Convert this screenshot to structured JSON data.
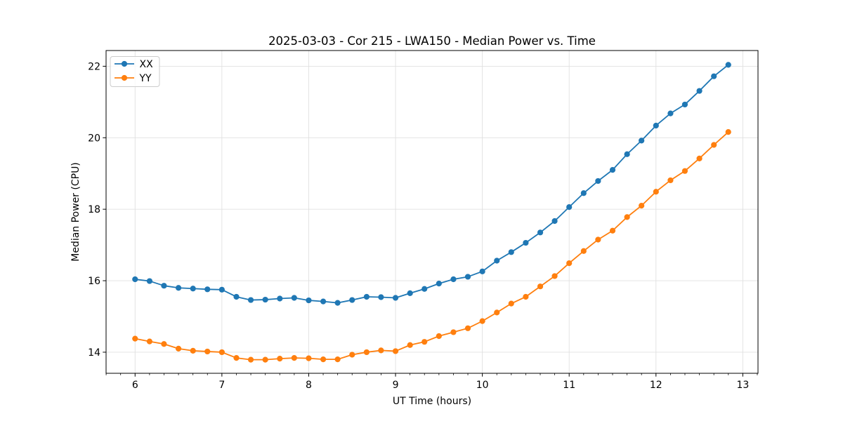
{
  "figure": {
    "title": "2025-03-03 - Cor 215 - LWA150 - Median Power vs. Time"
  },
  "chart_data": {
    "type": "line",
    "title": "2025-03-03 - Cor 215 - LWA150 - Median Power vs. Time",
    "xlabel": "UT Time (hours)",
    "ylabel": "Median Power (CPU)",
    "xlim": [
      5.666,
      13.175
    ],
    "ylim": [
      13.41,
      22.44
    ],
    "x_ticks": [
      6,
      7,
      8,
      9,
      10,
      11,
      12,
      13
    ],
    "y_ticks": [
      14,
      16,
      18,
      20,
      22
    ],
    "x_minor_tick_step_hours": 0.1667,
    "grid": true,
    "grid_color": "#e0e0e0",
    "background_color": "#ffffff",
    "legend": {
      "position": "upper-left",
      "entries": [
        "XX",
        "YY"
      ]
    },
    "x": [
      6.0,
      6.167,
      6.333,
      6.5,
      6.667,
      6.833,
      7.0,
      7.167,
      7.333,
      7.5,
      7.667,
      7.833,
      8.0,
      8.167,
      8.333,
      8.5,
      8.667,
      8.833,
      9.0,
      9.167,
      9.333,
      9.5,
      9.667,
      9.833,
      10.0,
      10.167,
      10.333,
      10.5,
      10.667,
      10.833,
      11.0,
      11.167,
      11.333,
      11.5,
      11.667,
      11.833,
      12.0,
      12.167,
      12.333,
      12.5,
      12.667,
      12.833
    ],
    "series": [
      {
        "name": "XX",
        "color": "#1f77b4",
        "marker": "circle",
        "values": [
          16.04,
          15.99,
          15.86,
          15.8,
          15.78,
          15.76,
          15.75,
          15.55,
          15.46,
          15.47,
          15.5,
          15.52,
          15.45,
          15.42,
          15.38,
          15.46,
          15.55,
          15.54,
          15.52,
          15.65,
          15.77,
          15.92,
          16.04,
          16.11,
          16.26,
          16.56,
          16.8,
          17.06,
          17.35,
          17.67,
          18.06,
          18.45,
          18.79,
          19.1,
          19.54,
          19.92,
          20.34,
          20.68,
          20.93,
          21.31,
          21.72,
          22.04
        ]
      },
      {
        "name": "YY",
        "color": "#ff7f0e",
        "marker": "circle",
        "values": [
          14.38,
          14.3,
          14.23,
          14.1,
          14.04,
          14.02,
          14.0,
          13.84,
          13.79,
          13.79,
          13.82,
          13.84,
          13.83,
          13.8,
          13.8,
          13.93,
          14.0,
          14.05,
          14.03,
          14.2,
          14.29,
          14.45,
          14.56,
          14.67,
          14.87,
          15.11,
          15.36,
          15.55,
          15.84,
          16.13,
          16.49,
          16.83,
          17.15,
          17.4,
          17.78,
          18.1,
          18.49,
          18.81,
          19.07,
          19.42,
          19.8,
          20.16
        ]
      }
    ]
  }
}
